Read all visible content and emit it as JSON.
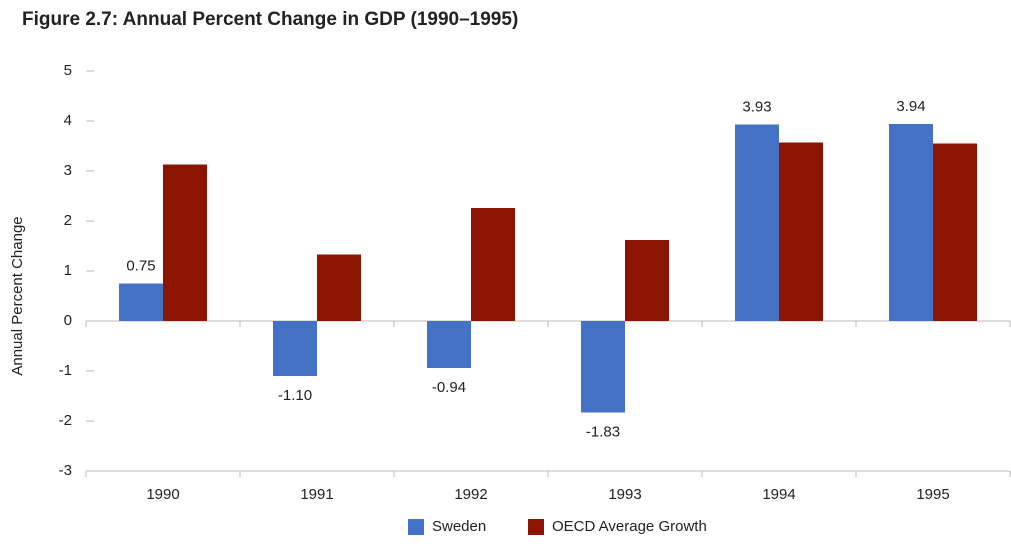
{
  "chart_data": {
    "type": "bar",
    "title": "Figure 2.7: Annual Percent Change in GDP (1990–1995)",
    "y_label": "Annual Percent Change",
    "categories": [
      "1990",
      "1991",
      "1992",
      "1993",
      "1994",
      "1995"
    ],
    "series": [
      {
        "name": "Sweden",
        "color": "#4472c4",
        "values": [
          0.75,
          -1.1,
          -0.94,
          -1.83,
          3.93,
          3.94
        ],
        "value_labels": [
          "0.75",
          "-1.10",
          "-0.94",
          "-1.83",
          "3.93",
          "3.94"
        ]
      },
      {
        "name": "OECD Average Growth",
        "color": "#8b1500",
        "values": [
          3.13,
          1.33,
          2.26,
          1.62,
          3.57,
          3.55
        ]
      }
    ],
    "ylim": [
      -3,
      5
    ],
    "yticks": [
      -3,
      -2,
      -1,
      0,
      1,
      2,
      3,
      4,
      5
    ],
    "legend": "bottom"
  }
}
